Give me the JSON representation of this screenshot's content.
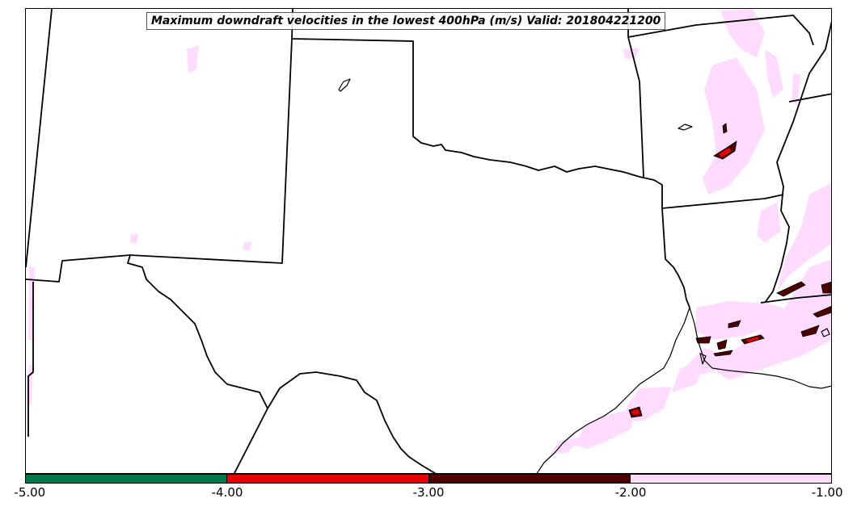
{
  "map": {
    "title": "Maximum downdraft velocities in the lowest 400hPa (m/s) Valid: 201804221200",
    "colorbar": {
      "segments": [
        {
          "from": -5.0,
          "to": -4.0,
          "color": "#007a4d"
        },
        {
          "from": -4.0,
          "to": -3.0,
          "color": "#e60000"
        },
        {
          "from": -3.0,
          "to": -2.0,
          "color": "#4d0000"
        },
        {
          "from": -2.0,
          "to": -1.0,
          "color": "#ffdcff"
        }
      ],
      "ticks": [
        "-5.00",
        "-4.00",
        "-3.00",
        "-2.00",
        "-1.00"
      ]
    }
  }
}
